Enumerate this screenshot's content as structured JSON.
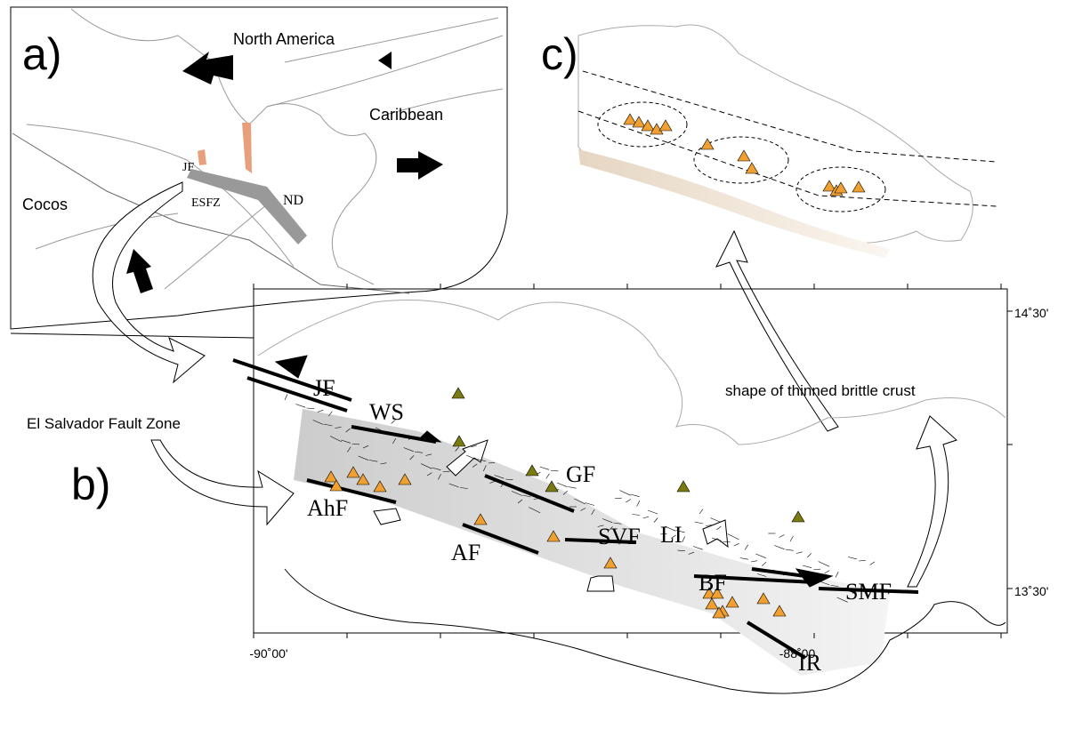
{
  "panel_a": {
    "label": "a)",
    "north_america": "North America",
    "caribbean": "Caribbean",
    "cocos": "Cocos",
    "jf": "JF",
    "esfz": "ESFZ",
    "nd": "ND"
  },
  "panel_b": {
    "label": "b)",
    "zone_name": "El Salvador Fault Zone",
    "faults": [
      "JF",
      "WS",
      "GF",
      "AhF",
      "SVF",
      "LI",
      "AF",
      "BF",
      "SMF",
      "IR"
    ],
    "lat_labels": [
      "14˚30'",
      "13˚30'"
    ],
    "lon_labels": [
      "-90˚00'",
      "-88˚00"
    ]
  },
  "panel_c": {
    "label": "c)",
    "caption": "shape of thinned brittle crust"
  }
}
